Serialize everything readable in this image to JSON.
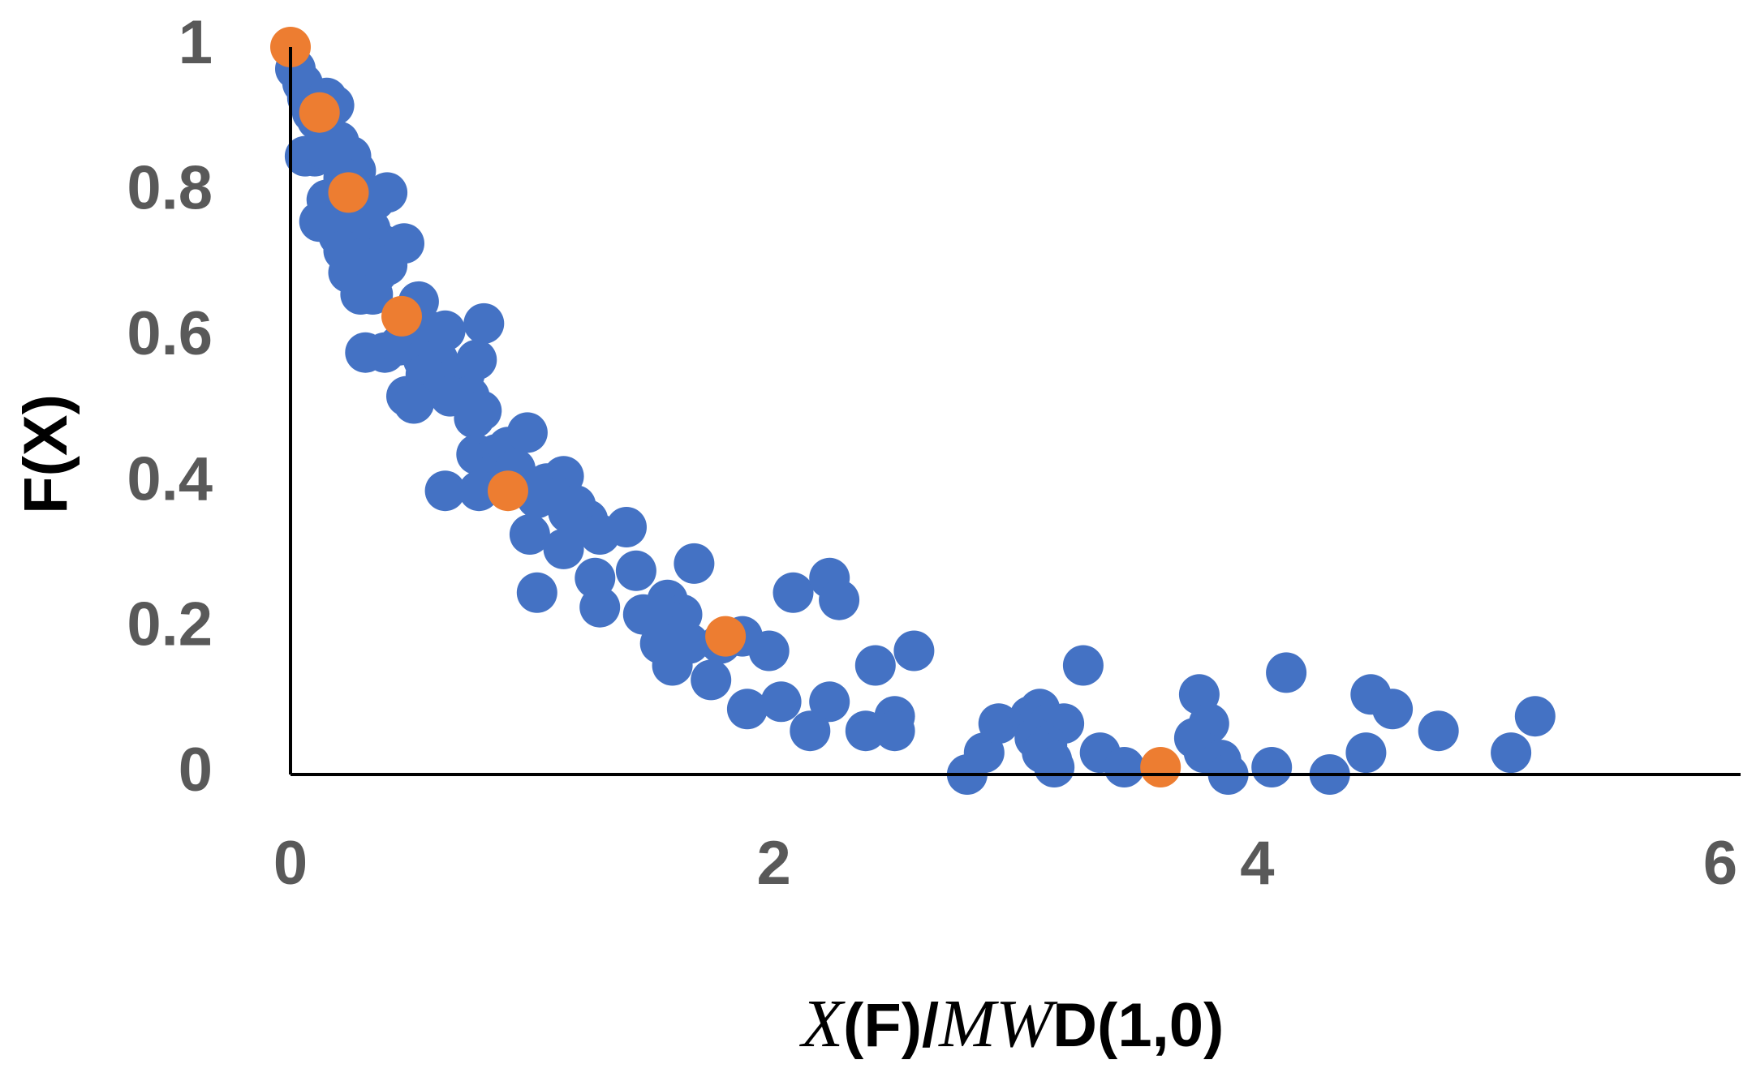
{
  "chart_data": {
    "type": "scatter",
    "title": "",
    "xlabel_parts": [
      {
        "text": "X",
        "italic": true
      },
      {
        "text": "(F)/",
        "italic": false
      },
      {
        "text": "MW",
        "italic": true
      },
      {
        "text": "D(1,0)",
        "italic": false
      }
    ],
    "ylabel": "F(X)",
    "xlim": [
      0,
      6
    ],
    "ylim": [
      0,
      1
    ],
    "x_ticks": [
      "0",
      "2",
      "4",
      "6"
    ],
    "y_ticks": [
      "0",
      "0.2",
      "0.4",
      "0.6",
      "0.8",
      "1"
    ],
    "grid": false,
    "legend": "none",
    "colors": {
      "series_blue": "#4472C4",
      "series_orange": "#ED7D31",
      "axis": "#000000",
      "tick_text": "#595959"
    },
    "series": [
      {
        "color": "#4472C4",
        "points": [
          [
            0.02,
            0.97
          ],
          [
            0.05,
            0.95
          ],
          [
            0.07,
            0.93
          ],
          [
            0.09,
            0.91
          ],
          [
            0.11,
            0.9
          ],
          [
            0.15,
            0.93
          ],
          [
            0.18,
            0.92
          ],
          [
            0.06,
            0.85
          ],
          [
            0.1,
            0.85
          ],
          [
            0.14,
            0.86
          ],
          [
            0.2,
            0.87
          ],
          [
            0.25,
            0.85
          ],
          [
            0.27,
            0.83
          ],
          [
            0.22,
            0.82
          ],
          [
            0.15,
            0.79
          ],
          [
            0.18,
            0.77
          ],
          [
            0.24,
            0.79
          ],
          [
            0.3,
            0.78
          ],
          [
            0.35,
            0.79
          ],
          [
            0.4,
            0.8
          ],
          [
            0.12,
            0.76
          ],
          [
            0.2,
            0.74
          ],
          [
            0.28,
            0.74
          ],
          [
            0.33,
            0.75
          ],
          [
            0.37,
            0.73
          ],
          [
            0.47,
            0.73
          ],
          [
            0.22,
            0.72
          ],
          [
            0.3,
            0.71
          ],
          [
            0.24,
            0.69
          ],
          [
            0.28,
            0.68
          ],
          [
            0.36,
            0.69
          ],
          [
            0.4,
            0.7
          ],
          [
            0.29,
            0.66
          ],
          [
            0.34,
            0.66
          ],
          [
            0.53,
            0.65
          ],
          [
            0.57,
            0.61
          ],
          [
            0.64,
            0.61
          ],
          [
            0.8,
            0.62
          ],
          [
            0.31,
            0.58
          ],
          [
            0.39,
            0.58
          ],
          [
            0.45,
            0.59
          ],
          [
            0.55,
            0.57
          ],
          [
            0.61,
            0.57
          ],
          [
            0.56,
            0.55
          ],
          [
            0.65,
            0.54
          ],
          [
            0.72,
            0.55
          ],
          [
            0.77,
            0.57
          ],
          [
            0.48,
            0.52
          ],
          [
            0.51,
            0.51
          ],
          [
            0.66,
            0.52
          ],
          [
            0.74,
            0.52
          ],
          [
            0.79,
            0.5
          ],
          [
            0.76,
            0.49
          ],
          [
            0.77,
            0.44
          ],
          [
            0.81,
            0.43
          ],
          [
            0.85,
            0.44
          ],
          [
            0.9,
            0.45
          ],
          [
            0.98,
            0.47
          ],
          [
            0.83,
            0.41
          ],
          [
            0.93,
            0.42
          ],
          [
            0.64,
            0.39
          ],
          [
            0.78,
            0.39
          ],
          [
            1.02,
            0.38
          ],
          [
            1.06,
            0.4
          ],
          [
            1.13,
            0.41
          ],
          [
            1.11,
            0.38
          ],
          [
            1.18,
            0.37
          ],
          [
            1.23,
            0.35
          ],
          [
            1.15,
            0.36
          ],
          [
            1.28,
            0.33
          ],
          [
            1.39,
            0.34
          ],
          [
            0.99,
            0.33
          ],
          [
            1.13,
            0.31
          ],
          [
            1.26,
            0.27
          ],
          [
            1.43,
            0.28
          ],
          [
            1.28,
            0.23
          ],
          [
            1.02,
            0.25
          ],
          [
            1.46,
            0.22
          ],
          [
            1.56,
            0.24
          ],
          [
            1.62,
            0.22
          ],
          [
            1.67,
            0.29
          ],
          [
            1.57,
            0.21
          ],
          [
            1.6,
            0.19
          ],
          [
            1.53,
            0.18
          ],
          [
            1.65,
            0.18
          ],
          [
            1.58,
            0.15
          ],
          [
            1.74,
            0.13
          ],
          [
            1.78,
            0.18
          ],
          [
            1.87,
            0.19
          ],
          [
            1.98,
            0.17
          ],
          [
            1.89,
            0.09
          ],
          [
            2.03,
            0.1
          ],
          [
            2.08,
            0.25
          ],
          [
            2.23,
            0.27
          ],
          [
            2.27,
            0.24
          ],
          [
            2.23,
            0.1
          ],
          [
            2.15,
            0.06
          ],
          [
            2.38,
            0.06
          ],
          [
            2.42,
            0.15
          ],
          [
            2.5,
            0.08
          ],
          [
            2.5,
            0.06
          ],
          [
            2.58,
            0.17
          ],
          [
            2.8,
            0.0
          ],
          [
            2.87,
            0.03
          ],
          [
            2.93,
            0.07
          ],
          [
            3.06,
            0.08
          ],
          [
            3.1,
            0.09
          ],
          [
            3.14,
            0.07
          ],
          [
            3.2,
            0.07
          ],
          [
            3.08,
            0.05
          ],
          [
            3.13,
            0.04
          ],
          [
            3.15,
            0.02
          ],
          [
            3.11,
            0.03
          ],
          [
            3.16,
            0.01
          ],
          [
            3.28,
            0.15
          ],
          [
            3.35,
            0.03
          ],
          [
            3.45,
            0.01
          ],
          [
            3.76,
            0.11
          ],
          [
            3.8,
            0.07
          ],
          [
            3.74,
            0.05
          ],
          [
            3.78,
            0.03
          ],
          [
            3.85,
            0.02
          ],
          [
            3.88,
            0.0
          ],
          [
            4.06,
            0.01
          ],
          [
            4.12,
            0.14
          ],
          [
            4.3,
            0.0
          ],
          [
            4.45,
            0.03
          ],
          [
            4.47,
            0.11
          ],
          [
            4.56,
            0.09
          ],
          [
            4.75,
            0.06
          ],
          [
            5.05,
            0.03
          ],
          [
            5.15,
            0.08
          ]
        ]
      },
      {
        "color": "#ED7D31",
        "points": [
          [
            0.0,
            1.0
          ],
          [
            0.12,
            0.91
          ],
          [
            0.24,
            0.8
          ],
          [
            0.46,
            0.63
          ],
          [
            0.9,
            0.39
          ],
          [
            1.8,
            0.19
          ],
          [
            3.6,
            0.01
          ]
        ]
      }
    ]
  }
}
